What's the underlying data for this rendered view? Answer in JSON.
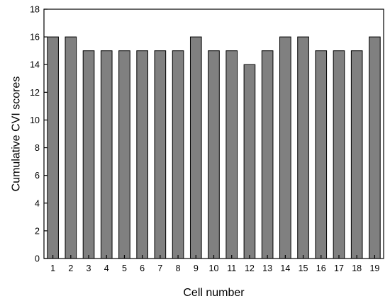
{
  "chart_data": {
    "type": "bar",
    "title": "",
    "xlabel": "Cell number",
    "ylabel": "Cumulative CVI scores",
    "categories": [
      "1",
      "2",
      "3",
      "4",
      "5",
      "6",
      "7",
      "8",
      "9",
      "10",
      "11",
      "12",
      "13",
      "14",
      "15",
      "16",
      "17",
      "18",
      "19"
    ],
    "values": [
      16,
      16,
      15,
      15,
      15,
      15,
      15,
      15,
      16,
      15,
      15,
      14,
      15,
      16,
      16,
      15,
      15,
      15,
      16
    ],
    "ylim": [
      0,
      18
    ],
    "yticks": [
      0,
      2,
      4,
      6,
      8,
      10,
      12,
      14,
      16,
      18
    ],
    "grid": false,
    "legend": "none",
    "bar_color": "#808080"
  }
}
